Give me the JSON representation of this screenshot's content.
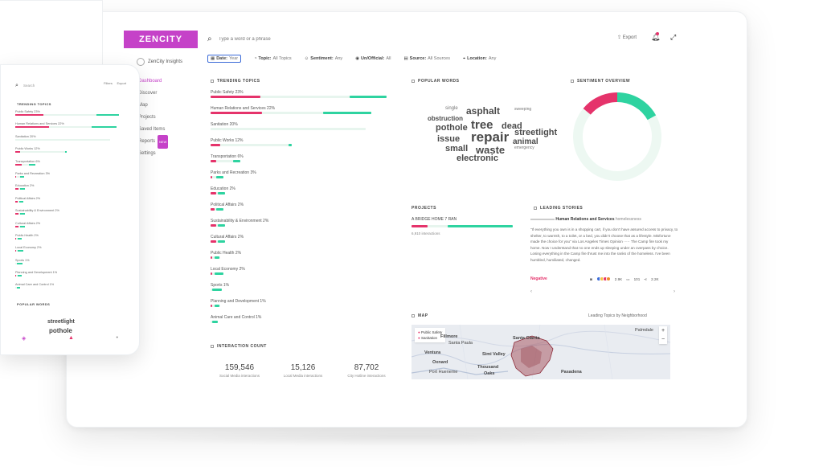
{
  "brand": {
    "logo_text": "ZENCITY",
    "accent": "#c542c8",
    "negative": "#e5336b",
    "positive": "#2ed3a0"
  },
  "header": {
    "search_placeholder": "Type a word or a phrase",
    "export_label": "Export",
    "icons": [
      "search-icon",
      "bell-icon",
      "expand-icon"
    ]
  },
  "sidebar": {
    "user_label": "ZenCity Insights",
    "items": [
      {
        "label": "Dashboard",
        "active": true
      },
      {
        "label": "Discover"
      },
      {
        "label": "Map"
      },
      {
        "label": "Projects"
      },
      {
        "label": "Saved Items"
      },
      {
        "label": "Reports",
        "badge": "NEW"
      },
      {
        "label": "Settings"
      }
    ]
  },
  "filters": [
    {
      "icon": "calendar-icon",
      "label": "Date:",
      "value": "Year",
      "active": true
    },
    {
      "icon": "topic-icon",
      "label": "Topic:",
      "value": "All Topics"
    },
    {
      "icon": "sentiment-icon",
      "label": "Sentiment:",
      "value": "Any"
    },
    {
      "icon": "official-icon",
      "label": "Un/Official:",
      "value": "All"
    },
    {
      "icon": "source-icon",
      "label": "Source:",
      "value": "All Sources"
    },
    {
      "icon": "location-icon",
      "label": "Location:",
      "value": "Any"
    }
  ],
  "trending": {
    "title": "TRENDING TOPICS",
    "topics": [
      {
        "label": "Public Safety 23%",
        "neg": 0.27,
        "pos": 0.2,
        "track": 0.95
      },
      {
        "label": "Human Relations and Services 22%",
        "neg": 0.28,
        "pos": 0.26,
        "track": 0.87
      },
      {
        "label": "Sanitation 20%",
        "neg": 0.0,
        "pos": 0.0,
        "track": 0.84
      },
      {
        "label": "Public Works 12%",
        "neg": 0.05,
        "pos": 0.02,
        "track": 0.44
      },
      {
        "label": "Transportation 6%",
        "neg": 0.03,
        "pos": 0.04,
        "track": 0.16
      },
      {
        "label": "Parks and Recreation 3%",
        "neg": 0.01,
        "pos": 0.04,
        "track": 0.07
      },
      {
        "label": "Education 2%",
        "neg": 0.03,
        "pos": 0.04,
        "track": 0.08
      },
      {
        "label": "Political Affairs 2%",
        "neg": 0.02,
        "pos": 0.04,
        "track": 0.07
      },
      {
        "label": "Sustainability & Environment 2%",
        "neg": 0.03,
        "pos": 0.04,
        "track": 0.07
      },
      {
        "label": "Cultural Affairs 2%",
        "neg": 0.03,
        "pos": 0.04,
        "track": 0.07
      },
      {
        "label": "Public Health 2%",
        "neg": 0.01,
        "pos": 0.03,
        "track": 0.05
      },
      {
        "label": "Local Economy 2%",
        "neg": 0.01,
        "pos": 0.05,
        "track": 0.07
      },
      {
        "label": "Sports 1%",
        "neg": 0.0,
        "pos": 0.05,
        "track": 0.05
      },
      {
        "label": "Planning and Development 1%",
        "neg": 0.01,
        "pos": 0.03,
        "track": 0.05
      },
      {
        "label": "Animal Care and Control 1%",
        "neg": 0.0,
        "pos": 0.03,
        "track": 0.03
      }
    ]
  },
  "interaction": {
    "title": "INTERACTION COUNT",
    "counts": [
      {
        "value": "159,546",
        "label": "Social Media interactions"
      },
      {
        "value": "15,126",
        "label": "Local Media interactions"
      },
      {
        "value": "87,702",
        "label": "City Hotline interactions"
      }
    ]
  },
  "popular_words": {
    "title": "POPULAR WORDS",
    "words": [
      "single",
      "asphalt",
      "sweeping",
      "obstruction",
      "pothole",
      "tree",
      "dead",
      "issue",
      "repair",
      "streetlight",
      "animal",
      "emergency",
      "small",
      "waste",
      "electronic"
    ]
  },
  "sentiment": {
    "title": "SENTIMENT OVERVIEW",
    "negative": 0.14,
    "positive": 0.17,
    "neutral": 0.69
  },
  "projects": {
    "title": "PROJECTS",
    "name": "A BRIDGE HOME 7 RAN",
    "sub": "6,910 interactions",
    "neg": 0.16,
    "pos": 0.64
  },
  "stories": {
    "title": "LEADING STORIES",
    "category": "Human Relations and Services",
    "tag": "homelessness",
    "text": "\"If everything you own is in a shopping cart, if you don't have assured access to privacy, to shelter, to warmth, to a toilet, or a bed, you didn't choose that as a lifestyle. Misfortune made the choice for you\" via Los Angeles Times Opinion ····· The Camp fire took my home. Now I understand that no one ends up sleeping under an overpass by choice. Losing everything in the Camp fire thrust me into the ranks of the homeless. I've been humbled, humiliated, changed.",
    "sentiment": "Negative",
    "reactions": "2.9K",
    "comments": "101",
    "shares": "2.2K"
  },
  "map": {
    "title": "MAP",
    "legend_title": "Leading Topics by Neighborhood",
    "keys": [
      "Public Safety",
      "Sanitation"
    ],
    "cities": [
      "Santa Clarita",
      "Fillmore",
      "Santa Paula",
      "Ventura",
      "Simi Valley",
      "Oxnard",
      "Thousand",
      "Oaks",
      "Port Hueneme",
      "Pasadena",
      "Palmdale"
    ]
  },
  "phone": {
    "search_placeholder": "Search",
    "right_labels": [
      "Filters",
      "Export"
    ],
    "trending_title": "TRENDING TOPICS",
    "topics": [
      {
        "label": "Public Safety 23%",
        "neg": 0.25,
        "pos": 0.2,
        "track": 0.92
      },
      {
        "label": "Human Relations and Services 22%",
        "neg": 0.3,
        "pos": 0.22,
        "track": 0.9
      },
      {
        "label": "Sanitation 20%",
        "neg": 0.0,
        "pos": 0.0,
        "track": 0.84
      },
      {
        "label": "Public Works 12%",
        "neg": 0.04,
        "pos": 0.02,
        "track": 0.46
      },
      {
        "label": "Transportation 6%",
        "neg": 0.06,
        "pos": 0.06,
        "track": 0.18
      },
      {
        "label": "Parks and Recreation 3%",
        "neg": 0.01,
        "pos": 0.04,
        "track": 0.08
      },
      {
        "label": "Education 2%",
        "neg": 0.03,
        "pos": 0.04,
        "track": 0.08
      },
      {
        "label": "Political Affairs 2%",
        "neg": 0.02,
        "pos": 0.04,
        "track": 0.07
      },
      {
        "label": "Sustainability & Environment 2%",
        "neg": 0.03,
        "pos": 0.04,
        "track": 0.07
      },
      {
        "label": "Cultural Affairs 2%",
        "neg": 0.03,
        "pos": 0.04,
        "track": 0.07
      },
      {
        "label": "Public Health 2%",
        "neg": 0.01,
        "pos": 0.03,
        "track": 0.05
      },
      {
        "label": "Local Economy 2%",
        "neg": 0.01,
        "pos": 0.05,
        "track": 0.07
      },
      {
        "label": "Sports 1%",
        "neg": 0.0,
        "pos": 0.05,
        "track": 0.05
      },
      {
        "label": "Planning and Development 1%",
        "neg": 0.01,
        "pos": 0.03,
        "track": 0.05
      },
      {
        "label": "Animal Care and Control 1%",
        "neg": 0.0,
        "pos": 0.03,
        "track": 0.03
      }
    ],
    "words_title": "POPULAR WORDS",
    "words": [
      "streetlight",
      "pothole"
    ]
  }
}
